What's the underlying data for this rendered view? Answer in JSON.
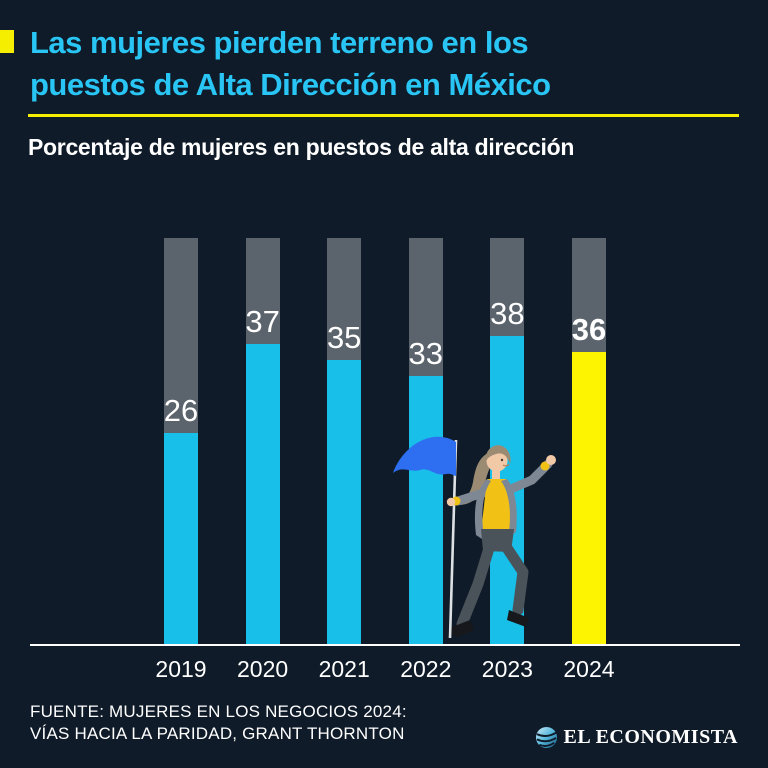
{
  "page": {
    "background": "#0F1B28"
  },
  "header": {
    "title_line1": "Las mujeres pierden terreno en los",
    "title_line2": "puestos de Alta Dirección en México",
    "subtitle": "Porcentaje de mujeres en puestos de alta dirección",
    "title_color": "#29C5F4",
    "rule_color": "#F5EE00"
  },
  "chart_data": {
    "type": "bar",
    "title": "Porcentaje de mujeres en puestos de alta dirección",
    "categories": [
      "2019",
      "2020",
      "2021",
      "2022",
      "2023",
      "2024"
    ],
    "values": [
      26,
      37,
      35,
      33,
      38,
      36
    ],
    "xlabel": "",
    "ylabel": "",
    "ylim": [
      0,
      50
    ],
    "grid": false,
    "legend": "none",
    "value_labels": true,
    "bar_track_color": "#5B646C",
    "bar_fill_color": "#18BFE9",
    "highlight_category": "2024",
    "highlight_color": "#FCF400",
    "value_label_color": "#FFFFFF"
  },
  "illustration": {
    "name": "woman-with-flag",
    "flag_color": "#2D6FF0",
    "vest_color": "#F2C115",
    "jacket_color": "#7D8894",
    "pants_color": "#4A525A"
  },
  "footer": {
    "source_line1": "FUENTE: MUJERES EN LOS NEGOCIOS 2024:",
    "source_line2": "VÍAS HACIA LA PARIDAD, GRANT THORNTON",
    "logo_text": "EL ECONOMISTA"
  }
}
